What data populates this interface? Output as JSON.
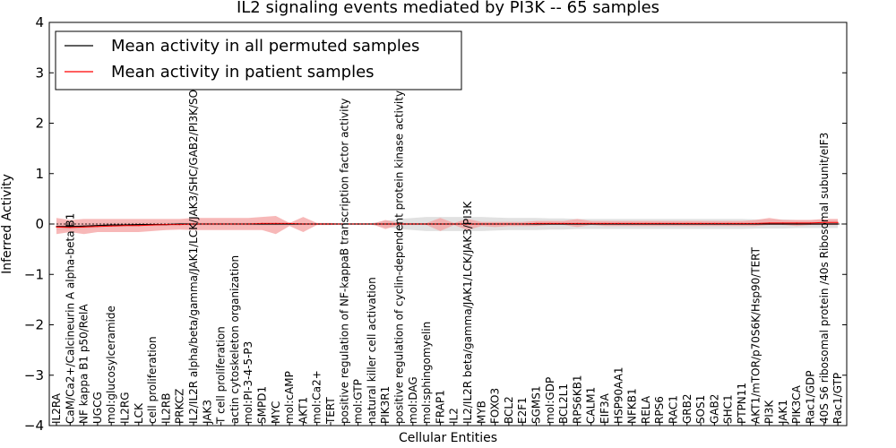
{
  "chart_data": {
    "type": "line",
    "title": "IL2 signaling events mediated by PI3K -- 65 samples",
    "xlabel": "Cellular Entities",
    "ylabel": "Inferred Activity",
    "ylim": [
      -4,
      4
    ],
    "yticks": [
      -4,
      -3,
      -2,
      -1,
      0,
      1,
      2,
      3,
      4
    ],
    "ytick_labels": [
      "−4",
      "−3",
      "−2",
      "−1",
      "0",
      "1",
      "2",
      "3",
      "4"
    ],
    "grid": false,
    "legend_position": "top-left",
    "categories": [
      "IL2RA",
      "CaM/Ca2+/Calcineurin A alpha-beta B1",
      "NF kappa B1 p50/RelA",
      "UGCG",
      "mol:glucosylceramide",
      "IL2RG",
      "LCK",
      "cell proliferation",
      "IL2RB",
      "PRKCZ",
      "IL2/IL2R alpha/beta/gamma/JAK1/LCK/JAK3/SHC/GAB2/PI3K/SOS1/SHP2",
      "JAK3",
      "T cell proliferation",
      "actin cytoskeleton organization",
      "mol:PI-3-4-5-P3",
      "SMPD1",
      "MYC",
      "mol:cAMP",
      "AKT1",
      "mol:Ca2+",
      "TERT",
      "positive regulation of NF-kappaB transcription factor activity",
      "mol:GTP",
      "natural killer cell activation",
      "PIK3R1",
      "positive regulation of cyclin-dependent protein kinase activity",
      "mol:DAG",
      "mol:sphingomyelin",
      "FRAP1",
      "IL2",
      "IL2/IL2R beta/gamma/JAK1/LCK/JAK3/PI3K",
      "MYB",
      "FOXO3",
      "BCL2",
      "E2F1",
      "SGMS1",
      "mol:GDP",
      "BCL2L1",
      "RPS6KB1",
      "CALM1",
      "EIF3A",
      "HSP90AA1",
      "NFKB1",
      "RELA",
      "RPS6",
      "RAC1",
      "GRB2",
      "SOS1",
      "GAB2",
      "SHC1",
      "PTPN11",
      "AKT1/mTOR/p70S6K/Hsp90/TERT",
      "PI3K",
      "JAK1",
      "PIK3CA",
      "Rac1/GDP",
      "40S S6 ribosomal protein /40s Ribosomal subunit/eIF3",
      "Rac1/GTP"
    ],
    "series": [
      {
        "name": "Mean activity in all permuted samples",
        "color": "#000000",
        "values": [
          -0.05,
          -0.05,
          -0.04,
          -0.03,
          -0.02,
          -0.02,
          -0.01,
          -0.01,
          -0.01,
          0,
          0,
          0,
          0,
          0,
          0,
          0,
          0,
          0,
          0,
          0,
          0,
          0,
          0,
          0,
          0,
          0,
          0,
          0,
          0,
          0,
          0,
          0,
          0,
          0,
          0,
          0,
          0,
          0,
          0,
          0,
          0,
          0,
          0,
          0,
          0,
          0,
          0,
          0,
          0,
          0,
          0,
          0,
          0,
          0,
          0,
          0,
          0,
          0
        ],
        "band_low": [
          -0.12,
          -0.12,
          -0.1,
          -0.08,
          -0.07,
          -0.06,
          -0.05,
          -0.05,
          -0.04,
          -0.04,
          -0.03,
          -0.03,
          -0.03,
          -0.03,
          -0.03,
          -0.03,
          -0.03,
          -0.02,
          -0.02,
          -0.02,
          -0.02,
          -0.02,
          -0.02,
          -0.02,
          -0.06,
          -0.1,
          -0.12,
          -0.14,
          -0.14,
          -0.14,
          -0.14,
          -0.14,
          -0.13,
          -0.12,
          -0.12,
          -0.12,
          -0.11,
          -0.11,
          -0.1,
          -0.1,
          -0.1,
          -0.1,
          -0.1,
          -0.1,
          -0.1,
          -0.1,
          -0.1,
          -0.1,
          -0.1,
          -0.1,
          -0.1,
          -0.09,
          -0.09,
          -0.09,
          -0.08,
          -0.08,
          -0.08,
          -0.08
        ],
        "band_high": [
          0.02,
          0.02,
          0.02,
          0.02,
          0.03,
          0.03,
          0.03,
          0.03,
          0.03,
          0.03,
          0.03,
          0.03,
          0.03,
          0.03,
          0.03,
          0.03,
          0.03,
          0.02,
          0.02,
          0.02,
          0.02,
          0.02,
          0.02,
          0.02,
          0.06,
          0.1,
          0.12,
          0.14,
          0.14,
          0.14,
          0.14,
          0.14,
          0.13,
          0.12,
          0.12,
          0.12,
          0.11,
          0.11,
          0.1,
          0.1,
          0.1,
          0.1,
          0.1,
          0.1,
          0.1,
          0.1,
          0.1,
          0.1,
          0.1,
          0.1,
          0.1,
          0.09,
          0.09,
          0.09,
          0.08,
          0.08,
          0.08,
          0.08
        ],
        "band_color": "#d9d9d9"
      },
      {
        "name": "Mean activity in patient samples",
        "color": "#ff0000",
        "values": [
          -0.06,
          -0.07,
          -0.06,
          -0.05,
          -0.04,
          -0.03,
          -0.03,
          -0.02,
          -0.01,
          -0.01,
          0,
          0,
          0,
          0,
          0,
          0.01,
          0.01,
          0.01,
          0,
          0,
          0,
          0,
          0,
          0,
          0,
          0,
          0,
          0,
          0,
          0,
          0,
          0,
          0,
          0,
          0,
          0.01,
          0.01,
          0.01,
          0.01,
          0.01,
          0.01,
          0.01,
          0.01,
          0.01,
          0.01,
          0.01,
          0.01,
          0.01,
          0.01,
          0.01,
          0.01,
          0.01,
          0.02,
          0.02,
          0.02,
          0.02,
          0.03,
          0.03
        ],
        "band_low": [
          -0.2,
          -0.16,
          -0.2,
          -0.16,
          -0.16,
          -0.16,
          -0.16,
          -0.14,
          -0.12,
          -0.11,
          -0.12,
          -0.12,
          -0.12,
          -0.12,
          -0.12,
          -0.12,
          -0.2,
          -0.04,
          -0.16,
          -0.02,
          -0.02,
          0,
          0,
          0,
          -0.1,
          -0.02,
          -0.02,
          -0.02,
          -0.14,
          -0.02,
          -0.12,
          -0.04,
          -0.06,
          -0.04,
          -0.04,
          -0.04,
          -0.02,
          -0.02,
          -0.06,
          -0.02,
          -0.04,
          -0.04,
          -0.04,
          -0.04,
          -0.04,
          -0.04,
          -0.04,
          -0.04,
          -0.04,
          -0.04,
          -0.04,
          -0.04,
          -0.02,
          -0.02,
          -0.04,
          -0.02,
          -0.02,
          -0.02
        ],
        "band_high": [
          0.12,
          0.08,
          0.1,
          0.1,
          0.1,
          0.1,
          0.1,
          0.1,
          0.1,
          0.1,
          0.12,
          0.12,
          0.12,
          0.12,
          0.12,
          0.14,
          0.16,
          0.02,
          0.14,
          0.02,
          0.02,
          0,
          0,
          0,
          0.08,
          0.02,
          0.02,
          0.02,
          0.12,
          0.02,
          0.1,
          0.04,
          0.04,
          0.04,
          0.04,
          0.06,
          0.06,
          0.06,
          0.1,
          0.06,
          0.06,
          0.06,
          0.06,
          0.06,
          0.06,
          0.06,
          0.06,
          0.06,
          0.06,
          0.06,
          0.06,
          0.08,
          0.12,
          0.08,
          0.08,
          0.08,
          0.1,
          0.1
        ],
        "band_color": "#f4a0a0"
      }
    ]
  }
}
